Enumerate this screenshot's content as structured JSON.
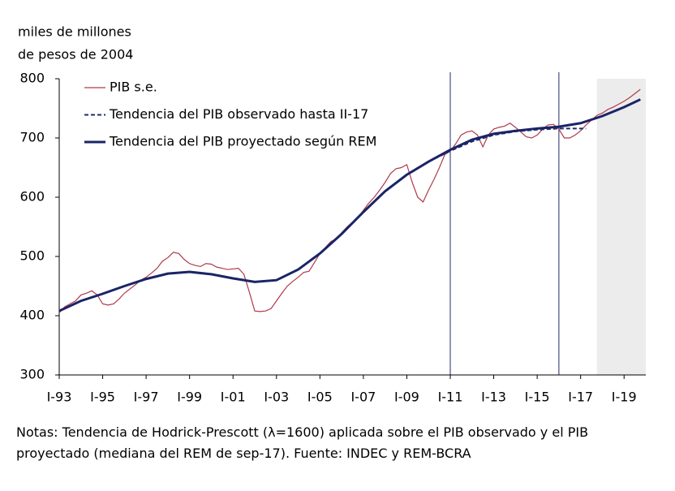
{
  "chart_data": {
    "type": "line",
    "ylabel_lines": [
      "miles de millones",
      "de pesos de 2004"
    ],
    "notes": "Notas: Tendencia de Hodrick-Prescott (λ=1600) aplicada sobre el PIB observado y el PIB proyectado (mediana del REM de sep-17). Fuente: INDEC y REM-BCRA",
    "xlim": [
      1993,
      2020
    ],
    "ylim": [
      300,
      800
    ],
    "yticks": [
      300,
      400,
      500,
      600,
      700,
      800
    ],
    "xticks": [
      {
        "value": 1993,
        "label": "I-93"
      },
      {
        "value": 1995,
        "label": "I-95"
      },
      {
        "value": 1997,
        "label": "I-97"
      },
      {
        "value": 1999,
        "label": "I-99"
      },
      {
        "value": 2001,
        "label": "I-01"
      },
      {
        "value": 2003,
        "label": "I-03"
      },
      {
        "value": 2005,
        "label": "I-05"
      },
      {
        "value": 2007,
        "label": "I-07"
      },
      {
        "value": 2009,
        "label": "I-09"
      },
      {
        "value": 2011,
        "label": "I-11"
      },
      {
        "value": 2013,
        "label": "I-13"
      },
      {
        "value": 2015,
        "label": "I-15"
      },
      {
        "value": 2017,
        "label": "I-17"
      },
      {
        "value": 2019,
        "label": "I-19"
      }
    ],
    "vlines": [
      2011,
      2016
    ],
    "shade": [
      2017.75,
      2020
    ],
    "shade_color": "#ececec",
    "series": [
      {
        "name": "PIB s.e.",
        "color": "#b03a4a",
        "width": 1.2,
        "dash": false,
        "x": [
          1993,
          1993.25,
          1993.5,
          1993.75,
          1994,
          1994.25,
          1994.5,
          1994.75,
          1995,
          1995.25,
          1995.5,
          1995.75,
          1996,
          1996.25,
          1996.5,
          1996.75,
          1997,
          1997.25,
          1997.5,
          1997.75,
          1998,
          1998.25,
          1998.5,
          1998.75,
          1999,
          1999.25,
          1999.5,
          1999.75,
          2000,
          2000.25,
          2000.5,
          2000.75,
          2001,
          2001.25,
          2001.5,
          2001.75,
          2002,
          2002.25,
          2002.5,
          2002.75,
          2003,
          2003.25,
          2003.5,
          2003.75,
          2004,
          2004.25,
          2004.5,
          2004.75,
          2005,
          2005.25,
          2005.5,
          2005.75,
          2006,
          2006.25,
          2006.5,
          2006.75,
          2007,
          2007.25,
          2007.5,
          2007.75,
          2008,
          2008.25,
          2008.5,
          2008.75,
          2009,
          2009.25,
          2009.5,
          2009.75,
          2010,
          2010.25,
          2010.5,
          2010.75,
          2011,
          2011.25,
          2011.5,
          2011.75,
          2012,
          2012.25,
          2012.5,
          2012.75,
          2013,
          2013.25,
          2013.5,
          2013.75,
          2014,
          2014.25,
          2014.5,
          2014.75,
          2015,
          2015.25,
          2015.5,
          2015.75,
          2016,
          2016.25,
          2016.5,
          2016.75,
          2017,
          2017.25,
          2017.5,
          2017.75,
          2018,
          2018.25,
          2018.5,
          2018.75,
          2019,
          2019.25,
          2019.5,
          2019.75
        ],
        "values": [
          405,
          415,
          420,
          425,
          435,
          438,
          442,
          435,
          420,
          418,
          420,
          428,
          438,
          445,
          452,
          460,
          465,
          472,
          480,
          492,
          498,
          507,
          505,
          495,
          488,
          485,
          483,
          488,
          487,
          482,
          480,
          478,
          479,
          480,
          470,
          440,
          408,
          407,
          408,
          412,
          425,
          438,
          450,
          458,
          465,
          473,
          475,
          490,
          505,
          515,
          525,
          530,
          540,
          550,
          558,
          565,
          578,
          590,
          600,
          612,
          625,
          640,
          648,
          650,
          655,
          625,
          600,
          592,
          612,
          630,
          650,
          672,
          678,
          690,
          705,
          710,
          712,
          705,
          685,
          705,
          715,
          718,
          720,
          725,
          718,
          710,
          702,
          700,
          705,
          715,
          722,
          723,
          715,
          700,
          700,
          705,
          712,
          722,
          730,
          738,
          742,
          748,
          752,
          757,
          762,
          768,
          775,
          782
        ]
      },
      {
        "name": "Tendencia del PIB observado hasta II-17",
        "color": "#1f2d6e",
        "width": 2,
        "dash": true,
        "x": [
          2009,
          2010,
          2011,
          2012,
          2013,
          2014,
          2015,
          2016,
          2017,
          2017.25
        ],
        "values": [
          638,
          660,
          678,
          694,
          705,
          711,
          714,
          716,
          716,
          716
        ]
      },
      {
        "name": "Tendencia del PIB proyectado según REM",
        "color": "#1a2466",
        "width": 3,
        "dash": false,
        "x": [
          1993,
          1994,
          1995,
          1996,
          1997,
          1998,
          1999,
          2000,
          2001,
          2002,
          2003,
          2004,
          2005,
          2006,
          2007,
          2008,
          2009,
          2010,
          2011,
          2012,
          2013,
          2014,
          2015,
          2016,
          2017,
          2018,
          2019,
          2019.75
        ],
        "values": [
          408,
          425,
          437,
          450,
          462,
          471,
          474,
          470,
          463,
          457,
          460,
          478,
          505,
          538,
          575,
          610,
          638,
          660,
          680,
          697,
          707,
          712,
          716,
          719,
          725,
          737,
          752,
          765
        ]
      }
    ]
  }
}
